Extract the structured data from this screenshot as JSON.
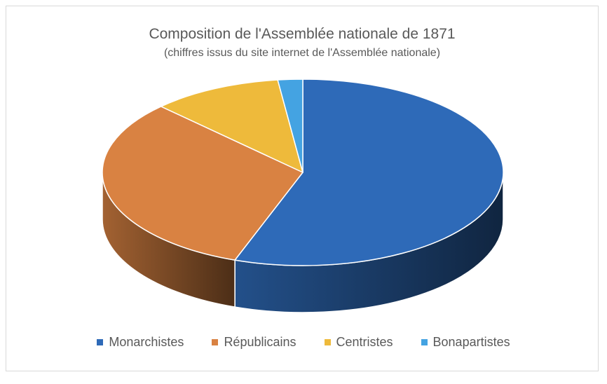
{
  "chart_data": {
    "type": "pie",
    "title": "Composition de l'Assemblée nationale de 1871",
    "subtitle": "(chiffres issus du site internet de l'Assemblée nationale)",
    "categories": [
      "Monarchistes",
      "Républicains",
      "Centristes",
      "Bonapartistes"
    ],
    "values": [
      55.5,
      32.0,
      10.5,
      2.0
    ],
    "colors": [
      "#2e6ab8",
      "#d98242",
      "#eeba3b",
      "#44a3e2"
    ],
    "legend_position": "bottom",
    "style": "3d"
  }
}
